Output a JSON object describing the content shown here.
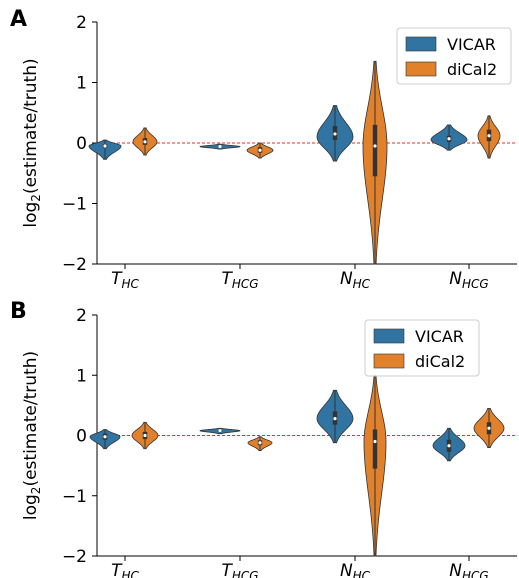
{
  "chart_data": [
    {
      "panel": "A",
      "type": "violin",
      "ylabel": "log",
      "ylabel_sub": "2",
      "ylabel_rest": "(estimate/truth)",
      "ylim": [
        -2,
        2
      ],
      "yticks": [
        "2",
        "1",
        "0",
        "−1",
        "−2"
      ],
      "ytick_values": [
        2,
        1,
        0,
        -1,
        -2
      ],
      "categories": [
        {
          "main": "T",
          "sub": "HC"
        },
        {
          "main": "T",
          "sub": "HCG"
        },
        {
          "main": "N",
          "sub": "HC"
        },
        {
          "main": "N",
          "sub": "HCG"
        }
      ],
      "legend": {
        "position": "top-right",
        "entries": [
          "VICAR",
          "diCal2"
        ]
      },
      "reference_line": 0,
      "series": [
        {
          "name": "VICAR",
          "color": "#3274a1",
          "violins": [
            {
              "min": -0.27,
              "max": 0.05,
              "q1": -0.08,
              "q3": -0.02,
              "median": -0.05,
              "mode": -0.05,
              "width": 0.8
            },
            {
              "min": -0.1,
              "max": -0.02,
              "q1": -0.07,
              "q3": -0.05,
              "median": -0.06,
              "mode": -0.06,
              "width": 1.0
            },
            {
              "min": -0.3,
              "max": 0.62,
              "q1": 0.05,
              "q3": 0.28,
              "median": 0.15,
              "mode": 0.1,
              "width": 0.9
            },
            {
              "min": -0.12,
              "max": 0.3,
              "q1": 0.02,
              "q3": 0.12,
              "median": 0.07,
              "mode": 0.05,
              "width": 0.9
            }
          ]
        },
        {
          "name": "diCal2",
          "color": "#e1812c",
          "violins": [
            {
              "min": -0.2,
              "max": 0.25,
              "q1": -0.03,
              "q3": 0.08,
              "median": 0.02,
              "mode": 0.02,
              "width": 0.6
            },
            {
              "min": -0.25,
              "max": 0.0,
              "q1": -0.16,
              "q3": -0.07,
              "median": -0.12,
              "mode": -0.12,
              "width": 0.65
            },
            {
              "min": -2.0,
              "max": 1.35,
              "q1": -0.55,
              "q3": 0.3,
              "median": -0.05,
              "mode": -0.05,
              "width": 0.6
            },
            {
              "min": -0.25,
              "max": 0.45,
              "q1": 0.03,
              "q3": 0.22,
              "median": 0.12,
              "mode": 0.12,
              "width": 0.55
            }
          ]
        }
      ]
    },
    {
      "panel": "B",
      "type": "violin",
      "ylabel": "log",
      "ylabel_sub": "2",
      "ylabel_rest": "(estimate/truth)",
      "ylim": [
        -2,
        2
      ],
      "yticks": [
        "2",
        "1",
        "0",
        "−1",
        "−2"
      ],
      "ytick_values": [
        2,
        1,
        0,
        -1,
        -2
      ],
      "categories": [
        {
          "main": "T",
          "sub": "HC"
        },
        {
          "main": "T",
          "sub": "HCG"
        },
        {
          "main": "N",
          "sub": "HC"
        },
        {
          "main": "N",
          "sub": "HCG"
        }
      ],
      "legend": {
        "position": "upper-right",
        "entries": [
          "VICAR",
          "diCal2"
        ]
      },
      "reference_line": 0,
      "series": [
        {
          "name": "VICAR",
          "color": "#3274a1",
          "violins": [
            {
              "min": -0.22,
              "max": 0.1,
              "q1": -0.07,
              "q3": 0.03,
              "median": -0.02,
              "mode": -0.02,
              "width": 0.75
            },
            {
              "min": 0.03,
              "max": 0.12,
              "q1": 0.06,
              "q3": 0.09,
              "median": 0.08,
              "mode": 0.08,
              "width": 1.0
            },
            {
              "min": -0.12,
              "max": 0.75,
              "q1": 0.18,
              "q3": 0.4,
              "median": 0.28,
              "mode": 0.28,
              "width": 0.9
            },
            {
              "min": -0.42,
              "max": 0.12,
              "q1": -0.27,
              "q3": -0.07,
              "median": -0.17,
              "mode": -0.17,
              "width": 0.8
            }
          ]
        },
        {
          "name": "diCal2",
          "color": "#e1812c",
          "violins": [
            {
              "min": -0.22,
              "max": 0.22,
              "q1": -0.06,
              "q3": 0.06,
              "median": 0.0,
              "mode": 0.0,
              "width": 0.65
            },
            {
              "min": -0.25,
              "max": -0.02,
              "q1": -0.16,
              "q3": -0.08,
              "median": -0.12,
              "mode": -0.12,
              "width": 0.6
            },
            {
              "min": -2.0,
              "max": 1.0,
              "q1": -0.55,
              "q3": 0.1,
              "median": -0.1,
              "mode": -0.1,
              "width": 0.55
            },
            {
              "min": -0.2,
              "max": 0.45,
              "q1": 0.02,
              "q3": 0.22,
              "median": 0.12,
              "mode": 0.12,
              "width": 0.75
            }
          ]
        }
      ]
    }
  ]
}
